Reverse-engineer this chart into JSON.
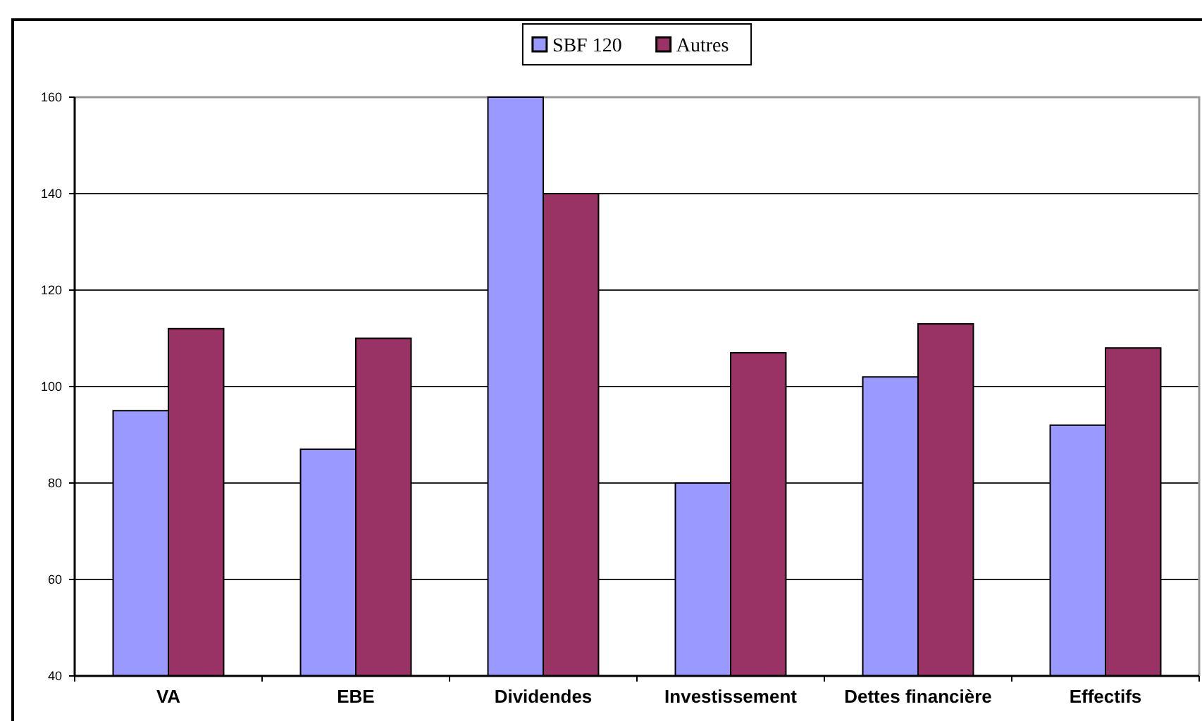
{
  "chart_data": {
    "type": "bar",
    "categories": [
      "VA",
      "EBE",
      "Dividendes",
      "Investissement",
      "Dettes financière",
      "Effectifs"
    ],
    "series": [
      {
        "name": "SBF 120",
        "color": "#9999ff",
        "values": [
          95,
          87,
          160,
          80,
          102,
          92
        ]
      },
      {
        "name": "Autres",
        "color": "#993366",
        "values": [
          112,
          110,
          140,
          107,
          113,
          108
        ]
      }
    ],
    "ylim": [
      40,
      160
    ],
    "yticks": [
      40,
      60,
      80,
      100,
      120,
      140,
      160
    ],
    "grid": "y",
    "legend": "top"
  }
}
